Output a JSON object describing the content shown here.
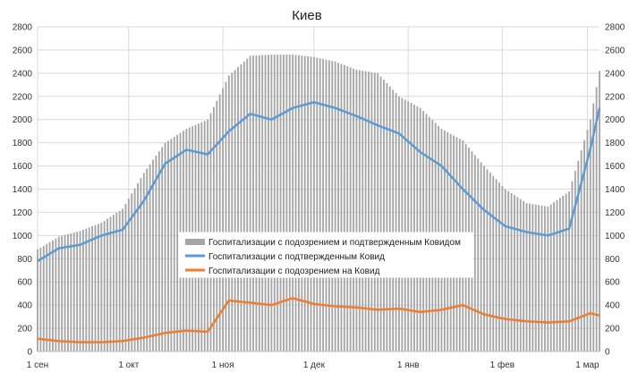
{
  "chart_data": {
    "type": "bar+line",
    "title": "Киев",
    "ylim": [
      0,
      2800
    ],
    "yticks": [
      0,
      200,
      400,
      600,
      800,
      1000,
      1200,
      1400,
      1600,
      1800,
      2000,
      2200,
      2400,
      2600,
      2800
    ],
    "x_start": "2020-09-01",
    "x_end": "2021-03-05",
    "xticks": [
      {
        "date": "2020-09-01",
        "label": "1 сен"
      },
      {
        "date": "2020-10-01",
        "label": "1 окт"
      },
      {
        "date": "2020-11-01",
        "label": "1 ноя"
      },
      {
        "date": "2020-12-01",
        "label": "1 дек"
      },
      {
        "date": "2021-01-01",
        "label": "1 янв"
      },
      {
        "date": "2021-02-01",
        "label": "1 фев"
      },
      {
        "date": "2021-03-01",
        "label": "1 мар"
      }
    ],
    "legend_position": "center",
    "colors": {
      "bars": "#a6a6a6",
      "confirmed": "#5b9bd5",
      "suspected": "#ed7d31",
      "grid": "#d9d9d9"
    },
    "series": [
      {
        "name": "Госпитализации с подозрением и подтвержденным Ковидом",
        "kind": "bar",
        "points": [
          [
            "2020-09-01",
            880
          ],
          [
            "2020-09-08",
            990
          ],
          [
            "2020-09-15",
            1040
          ],
          [
            "2020-09-22",
            1110
          ],
          [
            "2020-09-29",
            1230
          ],
          [
            "2020-10-06",
            1540
          ],
          [
            "2020-10-13",
            1800
          ],
          [
            "2020-10-20",
            1920
          ],
          [
            "2020-10-27",
            2000
          ],
          [
            "2020-11-03",
            2380
          ],
          [
            "2020-11-10",
            2550
          ],
          [
            "2020-11-17",
            2560
          ],
          [
            "2020-11-24",
            2560
          ],
          [
            "2020-12-01",
            2540
          ],
          [
            "2020-12-08",
            2500
          ],
          [
            "2020-12-15",
            2430
          ],
          [
            "2020-12-22",
            2400
          ],
          [
            "2020-12-29",
            2200
          ],
          [
            "2021-01-05",
            2100
          ],
          [
            "2021-01-12",
            1920
          ],
          [
            "2021-01-19",
            1820
          ],
          [
            "2021-01-26",
            1600
          ],
          [
            "2021-02-02",
            1400
          ],
          [
            "2021-02-09",
            1280
          ],
          [
            "2021-02-16",
            1250
          ],
          [
            "2021-02-23",
            1380
          ],
          [
            "2021-03-02",
            2000
          ],
          [
            "2021-03-05",
            2420
          ]
        ]
      },
      {
        "name": "Госпитализации с подтвержденным Ковид",
        "kind": "line",
        "points": [
          [
            "2020-09-01",
            780
          ],
          [
            "2020-09-08",
            890
          ],
          [
            "2020-09-15",
            920
          ],
          [
            "2020-09-22",
            1000
          ],
          [
            "2020-09-29",
            1050
          ],
          [
            "2020-10-06",
            1300
          ],
          [
            "2020-10-13",
            1620
          ],
          [
            "2020-10-20",
            1740
          ],
          [
            "2020-10-27",
            1700
          ],
          [
            "2020-11-03",
            1900
          ],
          [
            "2020-11-10",
            2050
          ],
          [
            "2020-11-17",
            2000
          ],
          [
            "2020-11-24",
            2100
          ],
          [
            "2020-12-01",
            2150
          ],
          [
            "2020-12-08",
            2100
          ],
          [
            "2020-12-15",
            2030
          ],
          [
            "2020-12-22",
            1950
          ],
          [
            "2020-12-29",
            1880
          ],
          [
            "2021-01-05",
            1720
          ],
          [
            "2021-01-12",
            1600
          ],
          [
            "2021-01-19",
            1400
          ],
          [
            "2021-01-26",
            1220
          ],
          [
            "2021-02-02",
            1080
          ],
          [
            "2021-02-09",
            1030
          ],
          [
            "2021-02-16",
            1000
          ],
          [
            "2021-02-23",
            1060
          ],
          [
            "2021-03-02",
            1750
          ],
          [
            "2021-03-05",
            2100
          ]
        ]
      },
      {
        "name": "Госпитализации с подозрением на Ковид",
        "kind": "line",
        "points": [
          [
            "2020-09-01",
            110
          ],
          [
            "2020-09-08",
            90
          ],
          [
            "2020-09-15",
            80
          ],
          [
            "2020-09-22",
            80
          ],
          [
            "2020-09-29",
            90
          ],
          [
            "2020-10-06",
            120
          ],
          [
            "2020-10-13",
            160
          ],
          [
            "2020-10-20",
            180
          ],
          [
            "2020-10-27",
            170
          ],
          [
            "2020-11-03",
            440
          ],
          [
            "2020-11-10",
            420
          ],
          [
            "2020-11-17",
            400
          ],
          [
            "2020-11-24",
            460
          ],
          [
            "2020-12-01",
            410
          ],
          [
            "2020-12-08",
            390
          ],
          [
            "2020-12-15",
            380
          ],
          [
            "2020-12-22",
            360
          ],
          [
            "2020-12-29",
            370
          ],
          [
            "2021-01-05",
            340
          ],
          [
            "2021-01-12",
            360
          ],
          [
            "2021-01-19",
            400
          ],
          [
            "2021-01-26",
            320
          ],
          [
            "2021-02-02",
            280
          ],
          [
            "2021-02-09",
            260
          ],
          [
            "2021-02-16",
            250
          ],
          [
            "2021-02-23",
            260
          ],
          [
            "2021-03-02",
            330
          ],
          [
            "2021-03-05",
            310
          ]
        ]
      }
    ]
  }
}
